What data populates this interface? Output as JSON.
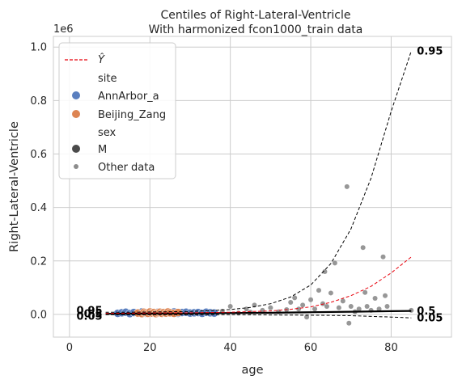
{
  "chart_data": {
    "type": "scatter",
    "title": "Centiles of Right-Lateral-Ventricle",
    "subtitle": "With harmonized fcon1000_train data",
    "xlabel": "age",
    "ylabel": "Right-Lateral-Ventricle",
    "y_offset_label": "1e6",
    "xlim": [
      -4,
      95
    ],
    "ylim": [
      -0.085,
      1.04
    ],
    "x_ticks": [
      0,
      20,
      40,
      60,
      80
    ],
    "x_tick_labels": [
      "0",
      "20",
      "40",
      "60",
      "80"
    ],
    "y_ticks": [
      0.0,
      0.2,
      0.4,
      0.6,
      0.8,
      1.0
    ],
    "y_tick_labels": [
      "0.0",
      "0.2",
      "0.4",
      "0.6",
      "0.8",
      "1.0"
    ],
    "grid": true,
    "legend_position": "top-left",
    "legend": {
      "yhat_label": "Ŷ",
      "site_heading": "site",
      "site_entries": [
        "AnnArbor_a",
        "Beijing_Zang"
      ],
      "sex_heading": "sex",
      "sex_entries": [
        "M"
      ],
      "other_label": "Other data"
    },
    "colors": {
      "yhat": "#e8000b",
      "AnnArbor_a": "#5a7fbf",
      "Beijing_Zang": "#dd8452",
      "M": "#4a4a4a",
      "other": "#8c8c8c",
      "centile": "#000000"
    },
    "centile_labels_right": [
      "0.95",
      "0.5",
      "0.05"
    ],
    "centile_labels_left": [
      "0.05",
      "0.5",
      "0.95"
    ],
    "series": [
      {
        "name": "0.95",
        "style": "dashed",
        "x": [
          9,
          15,
          20,
          25,
          30,
          35,
          40,
          45,
          50,
          55,
          60,
          65,
          70,
          75,
          80,
          85
        ],
        "y": [
          0.008,
          0.008,
          0.009,
          0.01,
          0.011,
          0.014,
          0.018,
          0.026,
          0.04,
          0.065,
          0.11,
          0.19,
          0.32,
          0.51,
          0.76,
          0.985
        ]
      },
      {
        "name": "0.5",
        "style": "solid",
        "x": [
          9,
          20,
          30,
          40,
          50,
          60,
          70,
          80,
          85
        ],
        "y": [
          0.002,
          0.003,
          0.004,
          0.005,
          0.006,
          0.008,
          0.01,
          0.012,
          0.013
        ]
      },
      {
        "name": "0.05",
        "style": "dashed",
        "x": [
          9,
          20,
          30,
          40,
          50,
          60,
          70,
          80,
          85
        ],
        "y": [
          -0.001,
          -0.001,
          -0.001,
          -0.001,
          -0.002,
          -0.003,
          -0.005,
          -0.01,
          -0.013
        ]
      },
      {
        "name": "Ŷ",
        "style": "dashed-red",
        "x": [
          9,
          20,
          30,
          40,
          50,
          55,
          60,
          65,
          70,
          75,
          80,
          85
        ],
        "y": [
          0.004,
          0.005,
          0.006,
          0.008,
          0.013,
          0.019,
          0.028,
          0.045,
          0.07,
          0.105,
          0.155,
          0.215
        ]
      }
    ],
    "points_annarbor": {
      "x": [
        12,
        13,
        14,
        15,
        16,
        17,
        18,
        19,
        21,
        22,
        23,
        25,
        26,
        27,
        28,
        29,
        30,
        31,
        32,
        33,
        34,
        35,
        36
      ],
      "y": [
        0.004,
        0.006,
        0.008,
        0.003,
        0.007,
        0.005,
        0.009,
        0.004,
        0.006,
        0.008,
        0.005,
        0.006,
        0.009,
        0.004,
        0.007,
        0.008,
        0.005,
        0.006,
        0.007,
        0.004,
        0.008,
        0.006,
        0.005
      ]
    },
    "points_beijing": {
      "x": [
        17,
        18,
        18.5,
        19,
        19.5,
        20,
        20.5,
        21,
        21.5,
        22,
        22.5,
        23,
        23.5,
        24,
        24.5,
        25,
        26,
        27
      ],
      "y": [
        0.005,
        0.003,
        0.008,
        0.006,
        0.004,
        0.009,
        0.005,
        0.007,
        0.003,
        0.006,
        0.008,
        0.004,
        0.007,
        0.005,
        0.009,
        0.006,
        0.004,
        0.007
      ]
    },
    "points_other": {
      "x": [
        38,
        40,
        42,
        44,
        45,
        46,
        48,
        50,
        52,
        54,
        55,
        56,
        57,
        58,
        59,
        60,
        61,
        62,
        63,
        63.5,
        64,
        65,
        66,
        67,
        68,
        69,
        69.5,
        70,
        71,
        72,
        73,
        73.5,
        74,
        75,
        76,
        77,
        78,
        78.5,
        79,
        85
      ],
      "y": [
        0.012,
        0.03,
        0.005,
        0.02,
        0.008,
        0.035,
        0.015,
        0.025,
        0.01,
        0.018,
        0.045,
        0.062,
        0.02,
        0.035,
        -0.01,
        0.055,
        0.02,
        0.09,
        0.04,
        0.16,
        0.03,
        0.08,
        0.192,
        0.025,
        0.05,
        0.478,
        -0.033,
        0.03,
        0.01,
        0.02,
        0.25,
        0.082,
        0.03,
        0.015,
        0.06,
        0.02,
        0.215,
        0.07,
        0.03,
        0.015
      ]
    }
  }
}
